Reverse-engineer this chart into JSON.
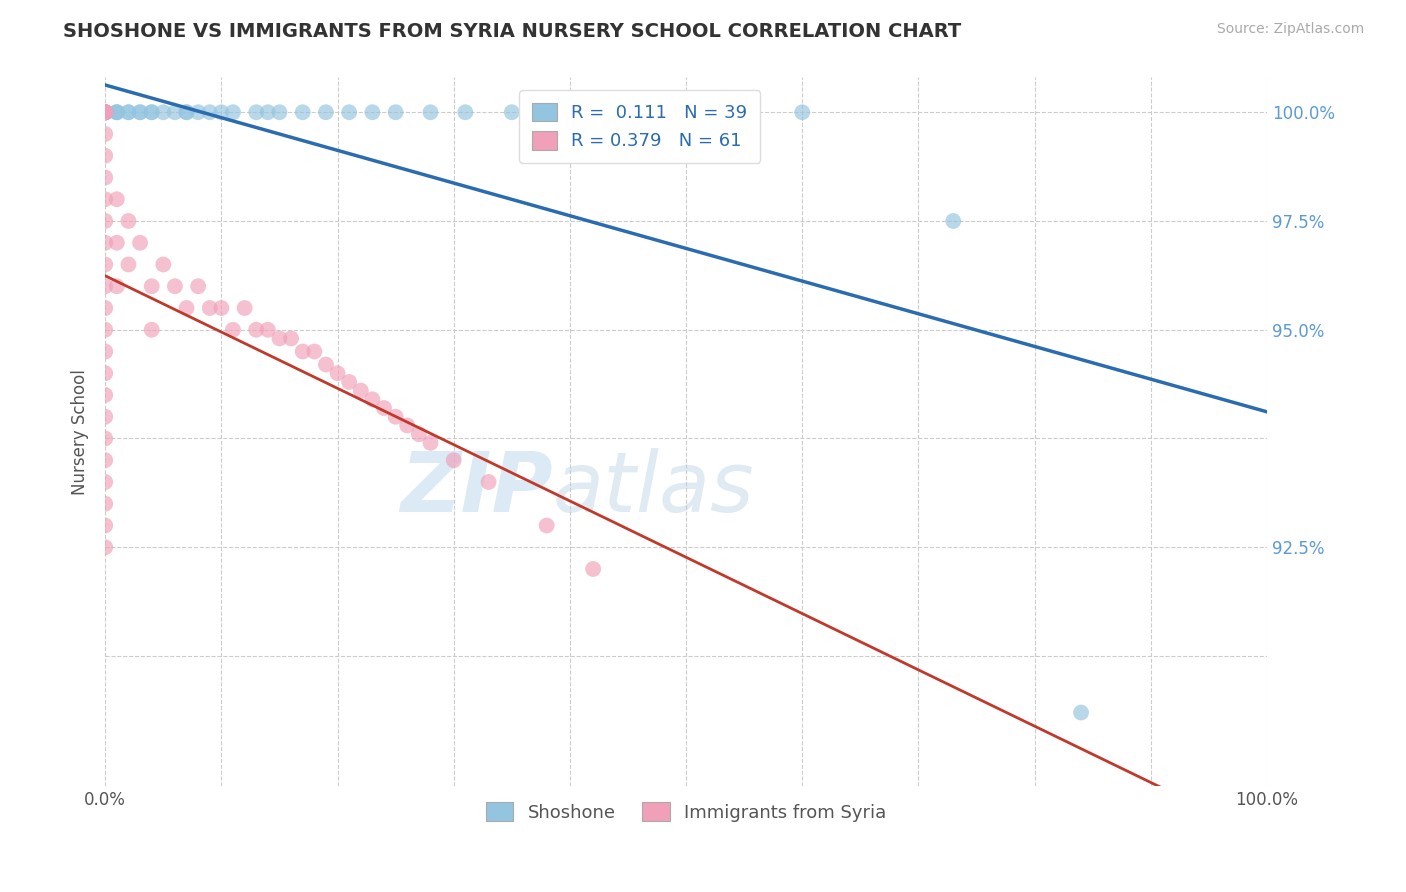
{
  "title": "SHOSHONE VS IMMIGRANTS FROM SYRIA NURSERY SCHOOL CORRELATION CHART",
  "source": "Source: ZipAtlas.com",
  "ylabel": "Nursery School",
  "x_min": 0.0,
  "x_max": 1.0,
  "y_min": 0.845,
  "y_max": 1.008,
  "shoshone_color": "#93c4e0",
  "syria_color": "#f0a0b8",
  "trend_shoshone_color": "#2b6cb0",
  "trend_syria_color": "#c0392b",
  "R_shoshone": 0.111,
  "N_shoshone": 39,
  "R_syria": 0.379,
  "N_syria": 61,
  "legend_labels": [
    "Shoshone",
    "Immigrants from Syria"
  ],
  "watermark_zip": "ZIP",
  "watermark_atlas": "atlas",
  "shoshone_x": [
    0.0,
    0.0,
    0.0,
    0.0,
    0.0,
    0.0,
    0.0,
    0.0,
    0.01,
    0.01,
    0.01,
    0.02,
    0.02,
    0.03,
    0.03,
    0.04,
    0.04,
    0.05,
    0.06,
    0.07,
    0.07,
    0.08,
    0.09,
    0.1,
    0.11,
    0.13,
    0.14,
    0.15,
    0.17,
    0.19,
    0.21,
    0.23,
    0.25,
    0.28,
    0.31,
    0.35,
    0.6,
    0.73,
    0.84
  ],
  "shoshone_y": [
    1.0,
    1.0,
    1.0,
    1.0,
    1.0,
    1.0,
    1.0,
    1.0,
    1.0,
    1.0,
    1.0,
    1.0,
    1.0,
    1.0,
    1.0,
    1.0,
    1.0,
    1.0,
    1.0,
    1.0,
    1.0,
    1.0,
    1.0,
    1.0,
    1.0,
    1.0,
    1.0,
    1.0,
    1.0,
    1.0,
    1.0,
    1.0,
    1.0,
    1.0,
    1.0,
    1.0,
    1.0,
    0.975,
    0.862
  ],
  "syria_x": [
    0.0,
    0.0,
    0.0,
    0.0,
    0.0,
    0.0,
    0.0,
    0.0,
    0.0,
    0.0,
    0.0,
    0.0,
    0.0,
    0.0,
    0.0,
    0.0,
    0.0,
    0.0,
    0.0,
    0.0,
    0.0,
    0.0,
    0.0,
    0.0,
    0.0,
    0.01,
    0.01,
    0.01,
    0.02,
    0.02,
    0.03,
    0.04,
    0.04,
    0.05,
    0.06,
    0.07,
    0.08,
    0.09,
    0.1,
    0.11,
    0.12,
    0.13,
    0.14,
    0.15,
    0.16,
    0.17,
    0.18,
    0.19,
    0.2,
    0.21,
    0.22,
    0.23,
    0.24,
    0.25,
    0.26,
    0.27,
    0.28,
    0.3,
    0.33,
    0.38,
    0.42
  ],
  "syria_y": [
    1.0,
    1.0,
    1.0,
    1.0,
    1.0,
    0.995,
    0.99,
    0.985,
    0.98,
    0.975,
    0.97,
    0.965,
    0.96,
    0.955,
    0.95,
    0.945,
    0.94,
    0.935,
    0.93,
    0.925,
    0.92,
    0.915,
    0.91,
    0.905,
    0.9,
    0.98,
    0.97,
    0.96,
    0.975,
    0.965,
    0.97,
    0.96,
    0.95,
    0.965,
    0.96,
    0.955,
    0.96,
    0.955,
    0.955,
    0.95,
    0.955,
    0.95,
    0.95,
    0.948,
    0.948,
    0.945,
    0.945,
    0.942,
    0.94,
    0.938,
    0.936,
    0.934,
    0.932,
    0.93,
    0.928,
    0.926,
    0.924,
    0.92,
    0.915,
    0.905,
    0.895
  ]
}
